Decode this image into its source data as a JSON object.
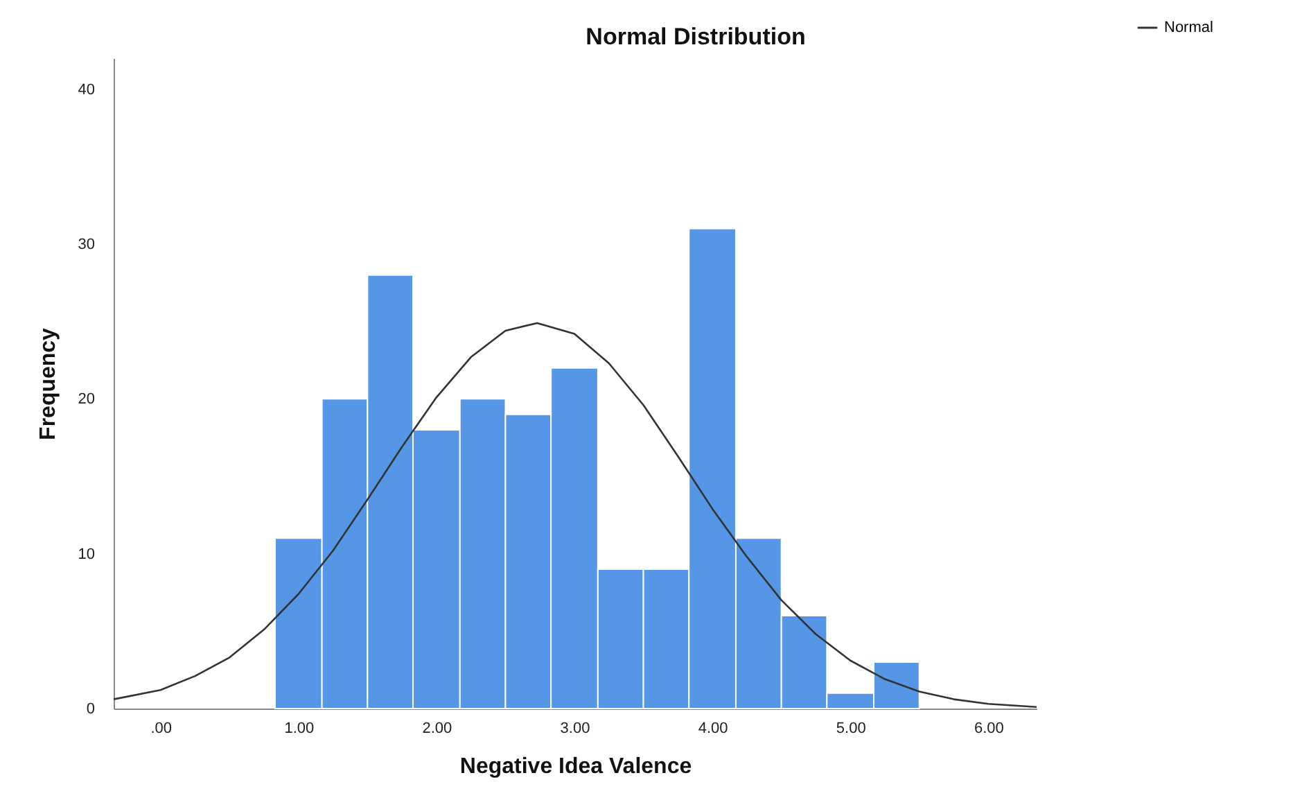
{
  "chart_data": {
    "type": "histogram",
    "title": "Normal Distribution",
    "xlabel": "Negative Idea Valence",
    "ylabel": "Frequency",
    "bins": [
      0.83,
      1.17,
      1.5,
      1.83,
      2.17,
      2.5,
      2.83,
      3.17,
      3.5,
      3.83,
      4.17,
      4.5,
      4.83,
      5.17,
      5.5
    ],
    "series": [
      {
        "color": "#5596e6",
        "values": [
          11,
          20,
          28,
          18,
          20,
          19,
          22,
          9,
          9,
          31,
          11,
          6,
          1,
          3
        ]
      },
      {
        "type": "line",
        "name": "Normal",
        "color": "#333333",
        "x": [
          -0.34,
          0,
          0.25,
          0.5,
          0.75,
          1,
          1.25,
          1.5,
          1.75,
          2,
          2.25,
          2.5,
          2.73,
          3,
          3.25,
          3.5,
          3.75,
          4,
          4.25,
          4.5,
          4.75,
          5,
          5.25,
          5.5,
          5.75,
          6,
          6.35
        ],
        "values": [
          0.6,
          1.2,
          2.1,
          3.3,
          5.1,
          7.4,
          10.2,
          13.5,
          16.9,
          20.1,
          22.7,
          24.4,
          24.9,
          24.2,
          22.3,
          19.6,
          16.3,
          12.9,
          9.8,
          7,
          4.8,
          3.1,
          1.9,
          1.1,
          0.6,
          0.3,
          0.1
        ]
      }
    ],
    "xlim": [
      -0.34,
      6.35
    ],
    "xticks": [
      {
        "value": 0,
        "label": ".00"
      },
      {
        "value": 1,
        "label": "1.00"
      },
      {
        "value": 2,
        "label": "2.00"
      },
      {
        "value": 3,
        "label": "3.00"
      },
      {
        "value": 4,
        "label": "4.00"
      },
      {
        "value": 5,
        "label": "5.00"
      },
      {
        "value": 6,
        "label": "6.00"
      }
    ],
    "ylim": [
      0,
      42
    ],
    "yticks": [
      0,
      10,
      20,
      30,
      40
    ],
    "grid": false,
    "legend": "top right",
    "line_style": "solid",
    "marker": "none"
  }
}
